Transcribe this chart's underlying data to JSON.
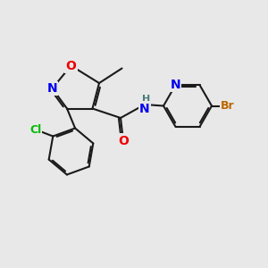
{
  "background_color": "#e8e8e8",
  "atom_colors": {
    "C": "#1a1a1a",
    "N": "#0000ee",
    "O": "#ee0000",
    "Cl": "#00bb00",
    "Br": "#bb6600",
    "H": "#4a7a7a"
  },
  "bond_color": "#1a1a1a",
  "bond_width": 1.5,
  "dbo": 0.07,
  "font_size": 9,
  "fig_width": 3.0,
  "fig_height": 3.0,
  "dpi": 100
}
